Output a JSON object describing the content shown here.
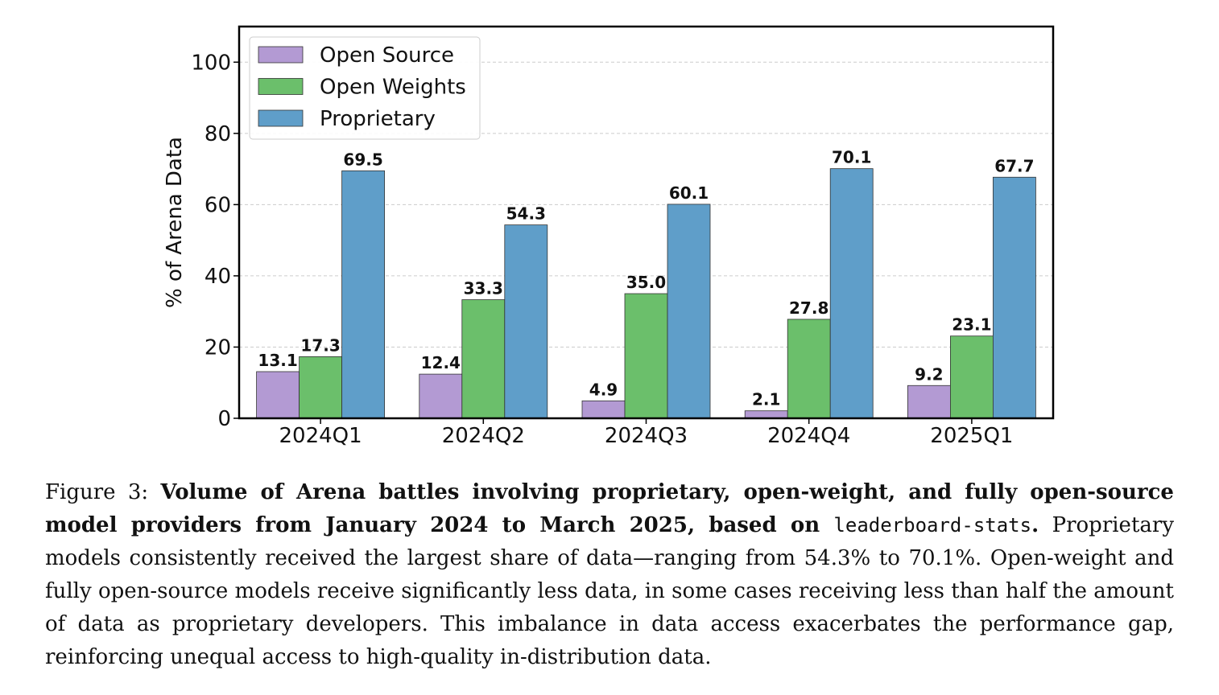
{
  "chart_data": {
    "type": "bar",
    "categories": [
      "2024Q1",
      "2024Q2",
      "2024Q3",
      "2024Q4",
      "2025Q1"
    ],
    "series": [
      {
        "name": "Open Source",
        "values": [
          13.1,
          12.4,
          4.9,
          2.1,
          9.2
        ],
        "labels": [
          "13.1",
          "12.4",
          "4.9",
          "2.1",
          "9.2"
        ],
        "color": "#b39ad3"
      },
      {
        "name": "Open Weights",
        "values": [
          17.3,
          33.3,
          35.0,
          27.8,
          23.1
        ],
        "labels": [
          "17.3",
          "33.3",
          "35.0",
          "27.8",
          "23.1"
        ],
        "color": "#6bbf6b"
      },
      {
        "name": "Proprietary",
        "values": [
          69.5,
          54.3,
          60.1,
          70.1,
          67.7
        ],
        "labels": [
          "69.5",
          "54.3",
          "60.1",
          "70.1",
          "67.7"
        ],
        "color": "#5f9ec9"
      }
    ],
    "ylabel": "% of Arena Data",
    "xlabel": "",
    "ylim": [
      0,
      110
    ],
    "yticks": [
      0,
      20,
      40,
      60,
      80,
      100
    ],
    "grid": "horizontal dashed",
    "legend_position": "top-left"
  },
  "caption": {
    "label": "Figure 3:",
    "bold_text": "Volume of Arena battles involving proprietary, open-weight, and fully open-source model providers from January 2024 to March 2025, based on",
    "code_text": "leaderboard-stats",
    "bold_end": ".",
    "body": "Proprietary models consistently received the largest share of data—ranging from 54.3% to 70.1%. Open-weight and fully open-source models receive significantly less data, in some cases receiving less than half the amount of data as proprietary developers. This imbalance in data access exacerbates the performance gap, reinforcing unequal access to high-quality in-distribution data."
  }
}
